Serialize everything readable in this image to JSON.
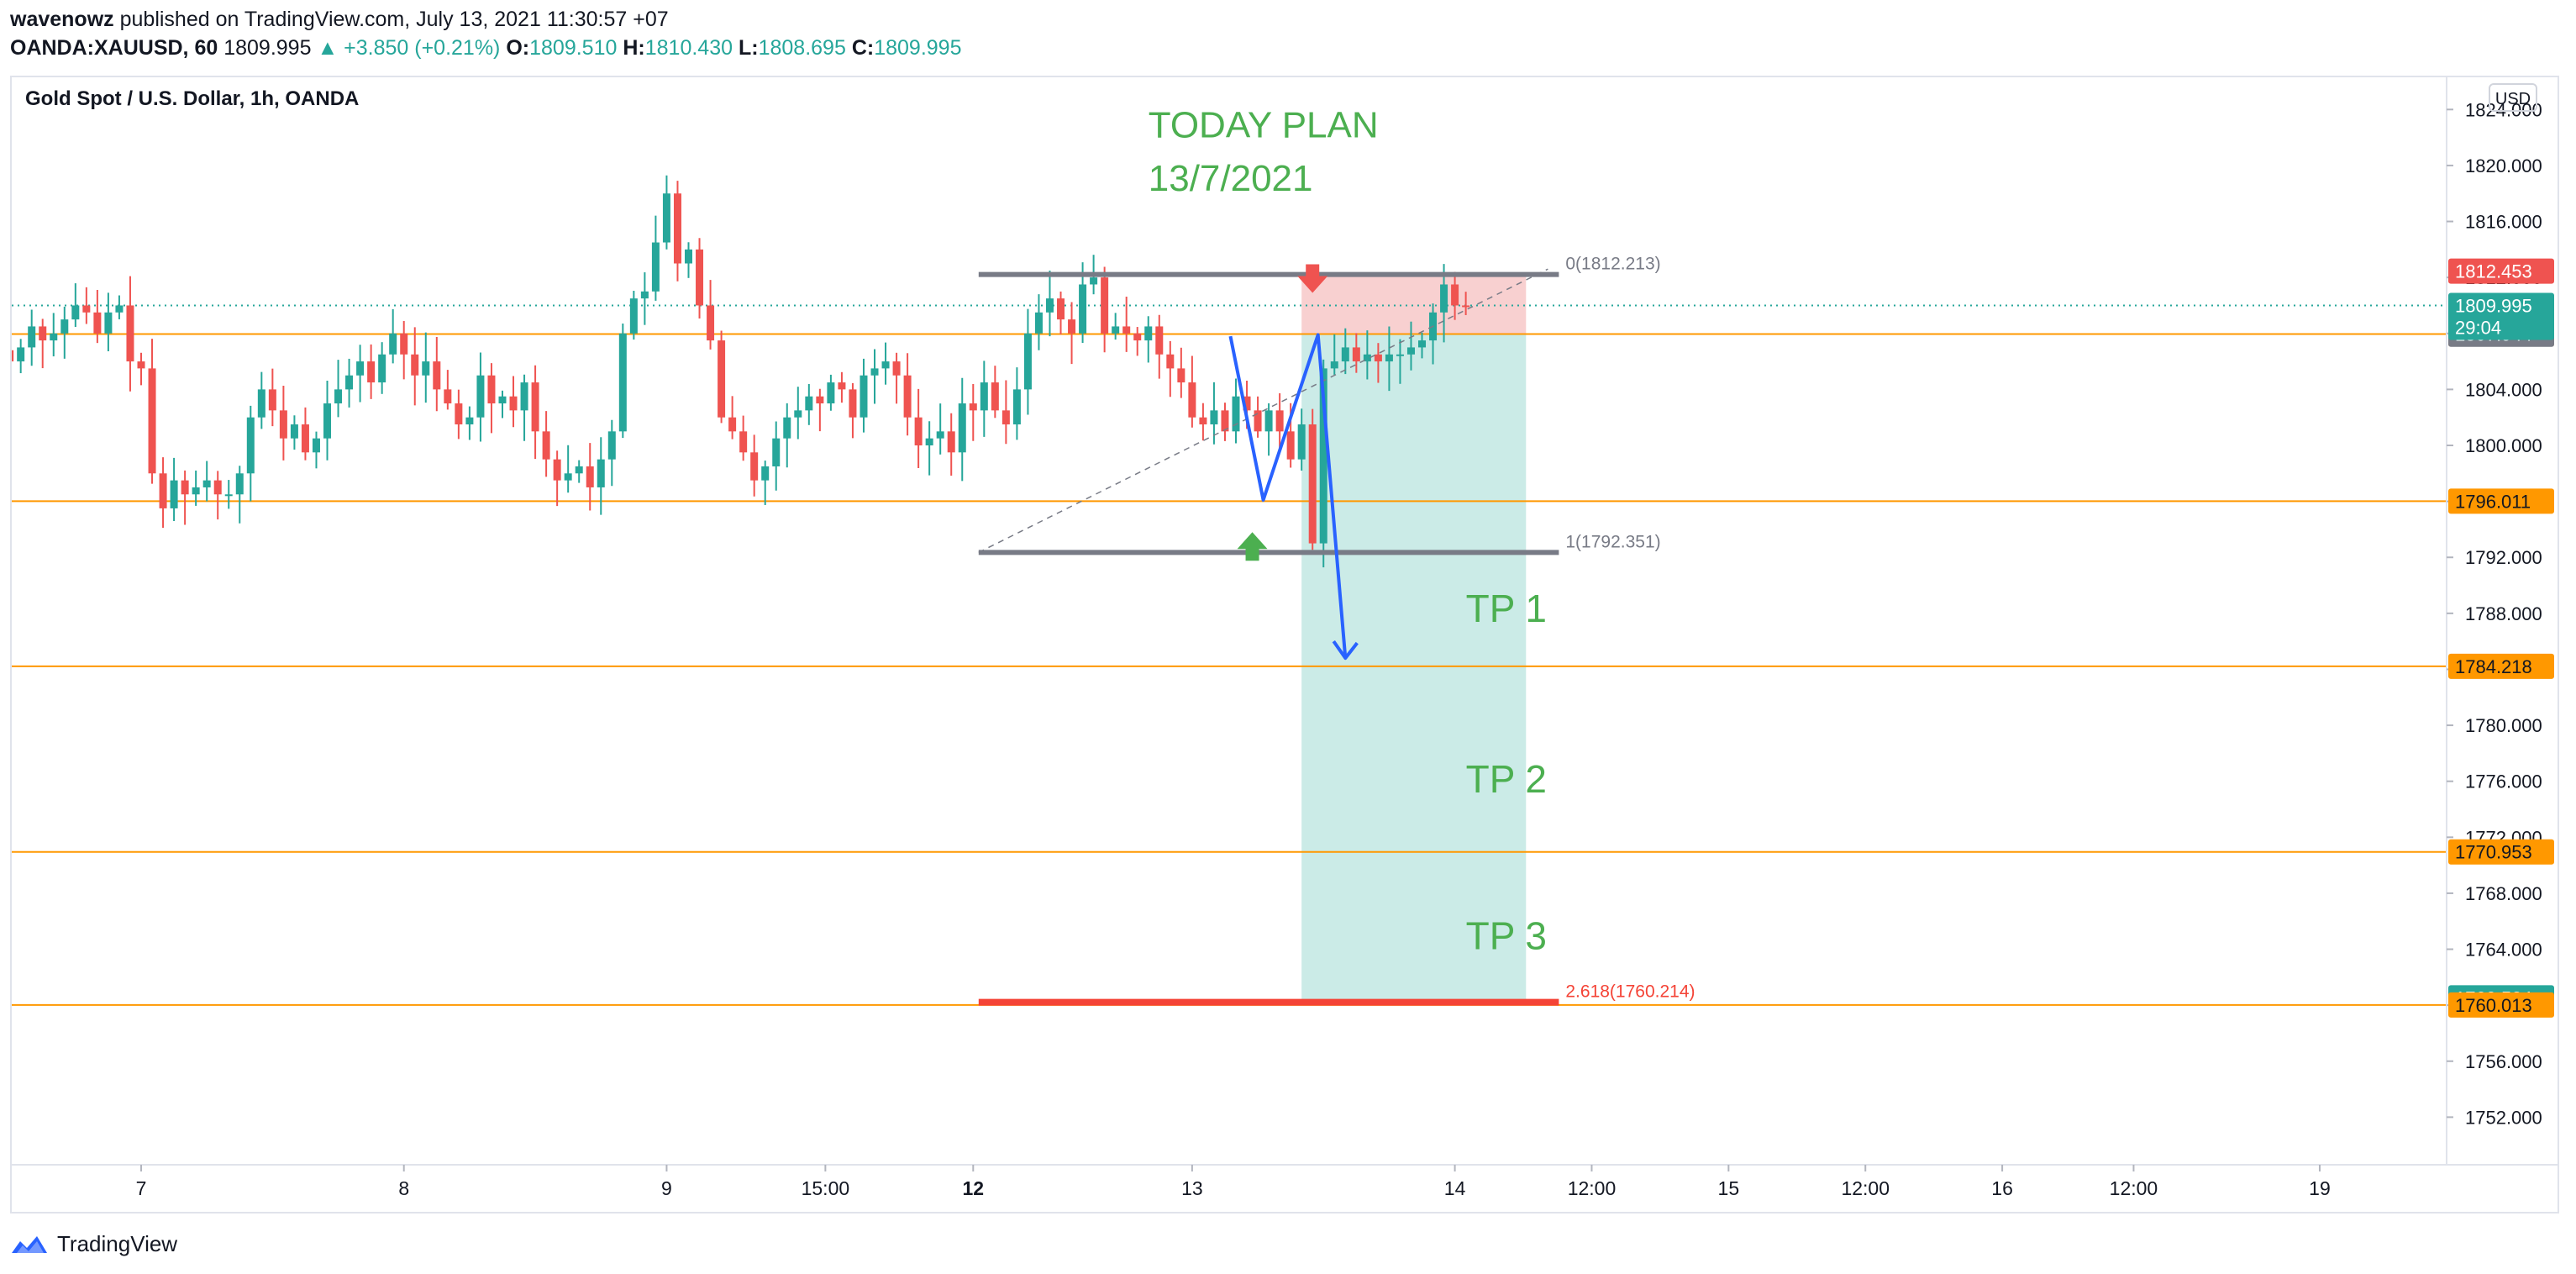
{
  "header": {
    "publisher": "wavenowz",
    "published_text": "published on TradingView.com, July 13, 2021 11:30:57 +07",
    "symbol": "OANDA:XAUUSD, 60",
    "last": "1809.995",
    "change": "▲ +3.850 (+0.21%)",
    "o_label": "O:",
    "o_value": "1809.510",
    "h_label": "H:",
    "h_value": "1810.430",
    "l_label": "L:",
    "l_value": "1808.695",
    "c_label": "C:",
    "c_value": "1809.995"
  },
  "currency": "USD",
  "footer": {
    "brand": "TradingView"
  },
  "colors": {
    "up": "#26a69a",
    "down": "#ef5350",
    "hline": "#ff9800",
    "range": "#787b86",
    "target": "#f44336",
    "plan_text": "#4caf50",
    "path": "#2962ff",
    "tp_zone": "#cbebe7",
    "sl_zone": "#f8d0d0",
    "grid": "#e0e3eb"
  },
  "chart_data": {
    "type": "candlestick",
    "title": "Gold Spot / U.S. Dollar, 1h, OANDA",
    "ylim": [
      1748.6,
      1826.3
    ],
    "y_ticks": [
      "1824.000",
      "1820.000",
      "1816.000",
      "1812.000",
      "1808.000",
      "1804.000",
      "1800.000",
      "1796.000",
      "1792.000",
      "1788.000",
      "1784.000",
      "1780.000",
      "1776.000",
      "1772.000",
      "1768.000",
      "1764.000",
      "1760.000",
      "1756.000",
      "1752.000"
    ],
    "x_ticks": [
      {
        "label": "7",
        "x": 0,
        "bold": false
      },
      {
        "label": "8",
        "x": 24,
        "bold": false
      },
      {
        "label": "9",
        "x": 48,
        "bold": false
      },
      {
        "label": "15:00",
        "x": 62.5,
        "bold": false
      },
      {
        "label": "12",
        "x": 76,
        "bold": true
      },
      {
        "label": "13",
        "x": 96,
        "bold": false
      },
      {
        "label": "14",
        "x": 120,
        "bold": false
      },
      {
        "label": "12:00",
        "x": 132.5,
        "bold": false
      },
      {
        "label": "15",
        "x": 145,
        "bold": false
      },
      {
        "label": "12:00",
        "x": 157.5,
        "bold": false
      },
      {
        "label": "16",
        "x": 170,
        "bold": false
      },
      {
        "label": "12:00",
        "x": 182,
        "bold": false
      },
      {
        "label": "19",
        "x": 199,
        "bold": false
      }
    ],
    "bar_start": -12,
    "closes": [
      1806.0,
      1807.0,
      1808.5,
      1807.5,
      1808.0,
      1809.0,
      1810.0,
      1809.5,
      1808.0,
      1809.5,
      1810.0,
      1806.0,
      1805.5,
      1798.0,
      1795.5,
      1797.5,
      1796.5,
      1797.0,
      1797.5,
      1796.5,
      1796.5,
      1798.0,
      1802.0,
      1804.0,
      1802.5,
      1800.5,
      1801.5,
      1799.5,
      1800.5,
      1803.0,
      1804.0,
      1805.0,
      1806.0,
      1804.5,
      1806.5,
      1808.0,
      1806.5,
      1805.0,
      1806.0,
      1804.0,
      1803.0,
      1801.5,
      1802.0,
      1805.0,
      1803.0,
      1803.5,
      1802.5,
      1804.5,
      1801.0,
      1799.0,
      1797.5,
      1798.0,
      1798.5,
      1797.0,
      1799.0,
      1801.0,
      1808.0,
      1810.5,
      1811.0,
      1814.5,
      1818.0,
      1813.0,
      1814.0,
      1810.0,
      1807.5,
      1802.0,
      1801.0,
      1799.5,
      1797.5,
      1798.5,
      1800.5,
      1802.0,
      1802.5,
      1803.5,
      1803.0,
      1804.5,
      1804.0,
      1802.0,
      1805.0,
      1805.5,
      1806.0,
      1805.0,
      1802.0,
      1800.0,
      1800.5,
      1801.0,
      1799.5,
      1803.0,
      1802.5,
      1804.5,
      1802.5,
      1801.5,
      1804.0,
      1808.0,
      1809.5,
      1810.5,
      1809.0,
      1808.0,
      1811.5,
      1812.0,
      1808.0,
      1808.5,
      1808.0,
      1807.5,
      1808.5,
      1806.5,
      1805.5,
      1804.5,
      1802.0,
      1801.5,
      1802.5,
      1801.0,
      1803.5,
      1802.5,
      1801.0,
      1802.5,
      1801.0,
      1799.0,
      1801.5,
      1793.0,
      1805.5,
      1806.0,
      1807.0,
      1806.0,
      1806.5,
      1806.0,
      1806.5,
      1806.5,
      1807.0,
      1807.5,
      1809.5,
      1811.5,
      1810.0,
      1809.995
    ],
    "levels": [
      {
        "label": "1807.953",
        "price": 1807.953,
        "kind": "hline"
      },
      {
        "label": "1796.011",
        "price": 1796.011,
        "kind": "hline"
      },
      {
        "label": "1784.218",
        "price": 1784.218,
        "kind": "hline"
      },
      {
        "label": "1770.953",
        "price": 1770.953,
        "kind": "hline"
      },
      {
        "label": "1760.013",
        "price": 1760.013,
        "kind": "hline"
      }
    ],
    "price_tags": [
      {
        "label": "1812.453",
        "price": 1812.453,
        "color": "#ef5350"
      },
      {
        "label": "1807.953",
        "price": 1807.953,
        "color": "#ff9800"
      },
      {
        "label": "1807.944",
        "price": 1807.944,
        "color": "#787b86"
      },
      {
        "label": "1796.011",
        "price": 1796.011,
        "color": "#ff9800"
      },
      {
        "label": "1784.218",
        "price": 1784.218,
        "color": "#ff9800"
      },
      {
        "label": "1770.953",
        "price": 1770.953,
        "color": "#ff9800"
      },
      {
        "label": "1760.524",
        "price": 1760.524,
        "color": "#26a69a"
      },
      {
        "label": "1760.013",
        "price": 1760.013,
        "color": "#ff9800"
      }
    ],
    "current": {
      "label": "1809.995",
      "countdown": "29:04",
      "price": 1809.995
    },
    "fib": [
      {
        "label": "0(1812.213)",
        "price": 1812.213
      },
      {
        "label": "1(1792.351)",
        "price": 1792.351
      },
      {
        "label": "2.618(1760.214)",
        "price": 1760.214
      }
    ],
    "fib_x": [
      76.5,
      129.5
    ],
    "fib_diag": [
      [
        76.5,
        1792.351
      ],
      [
        128.5,
        1812.6
      ]
    ],
    "zone": {
      "x0": 106,
      "x1": 126.5,
      "entry": 1807.953,
      "stop": 1812.213,
      "target": 1760.214
    },
    "plan_path": [
      [
        99.5,
        1807.8
      ],
      [
        102.5,
        1796.1
      ],
      [
        107.5,
        1807.9
      ],
      [
        110,
        1784.8
      ]
    ],
    "arrows": [
      {
        "kind": "down",
        "x": 107,
        "price": 1811.5
      },
      {
        "kind": "up",
        "x": 101.5,
        "price": 1793.2
      }
    ],
    "annotations": [
      {
        "text": "TODAY PLAN",
        "x": 92,
        "price": 1822.0
      },
      {
        "text": "13/7/2021",
        "x": 92,
        "price": 1818.2
      },
      {
        "text": "TP 1",
        "x": 121,
        "price": 1787.4
      },
      {
        "text": "TP 2",
        "x": 121,
        "price": 1775.2
      },
      {
        "text": "TP 3",
        "x": 121,
        "price": 1764.0
      }
    ]
  }
}
